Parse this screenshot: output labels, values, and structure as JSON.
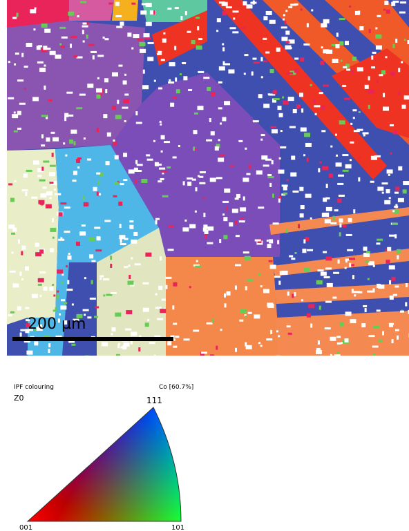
{
  "map": {
    "scale_bar": "200 µm"
  },
  "legend": {
    "title": "IPF colouring",
    "direction": "Z0",
    "phase": "Co [60.7%]",
    "vertices": {
      "top": "111",
      "left": "001",
      "right": "101"
    }
  }
}
